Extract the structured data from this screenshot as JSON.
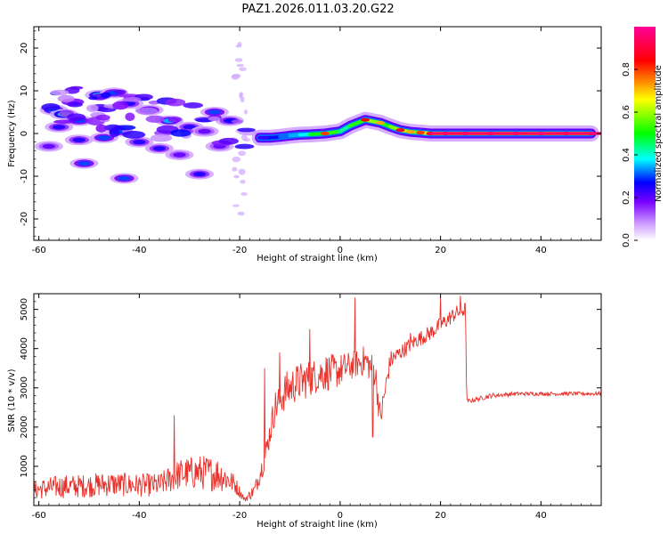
{
  "figure_title": "PAZ1.2026.011.03.20.G22",
  "chart_data": [
    {
      "type": "heatmap",
      "title": "PAZ1.2026.011.03.20.G22",
      "xlabel": "Height of straight line (km)",
      "ylabel": "Frequency (Hz)",
      "xlim": [
        -61,
        52
      ],
      "ylim": [
        -25,
        25
      ],
      "x_ticks": [
        -60,
        -40,
        -20,
        0,
        20,
        40
      ],
      "y_ticks": [
        -20,
        -10,
        0,
        10,
        20
      ],
      "colorbar": {
        "label": "Normalized spectral amplitude",
        "range": [
          0,
          1
        ],
        "ticks": [
          0.0,
          0.2,
          0.4,
          0.6,
          0.8
        ],
        "colors": [
          "#ffffff",
          "#cc99ff",
          "#7a00ff",
          "#0000ff",
          "#00ffff",
          "#00ff00",
          "#ffff00",
          "#ff0000",
          "#ff00aa"
        ]
      },
      "ridge": [
        {
          "h": -16,
          "f": -1.0,
          "a": 0.28
        },
        {
          "h": -14,
          "f": -1.0,
          "a": 0.34
        },
        {
          "h": -12,
          "f": -0.8,
          "a": 0.4
        },
        {
          "h": -10,
          "f": -0.5,
          "a": 0.44
        },
        {
          "h": -8,
          "f": -0.3,
          "a": 0.48
        },
        {
          "h": -6,
          "f": -0.2,
          "a": 0.52
        },
        {
          "h": -3,
          "f": 0.0,
          "a": 0.8
        },
        {
          "h": 0,
          "f": 0.5,
          "a": 0.6
        },
        {
          "h": 2,
          "f": 1.8,
          "a": 0.55
        },
        {
          "h": 5,
          "f": 3.2,
          "a": 0.85
        },
        {
          "h": 8,
          "f": 2.5,
          "a": 0.72
        },
        {
          "h": 10,
          "f": 1.6,
          "a": 0.66
        },
        {
          "h": 12,
          "f": 0.8,
          "a": 0.88
        },
        {
          "h": 14,
          "f": 0.4,
          "a": 0.72
        },
        {
          "h": 16,
          "f": 0.2,
          "a": 0.8
        },
        {
          "h": 18,
          "f": 0.0,
          "a": 0.9
        },
        {
          "h": 21,
          "f": 0.0,
          "a": 0.98
        },
        {
          "h": 25,
          "f": 0.0,
          "a": 0.97
        },
        {
          "h": 30,
          "f": 0.0,
          "a": 0.97
        },
        {
          "h": 35,
          "f": 0.0,
          "a": 0.97
        },
        {
          "h": 40,
          "f": 0.0,
          "a": 0.97
        },
        {
          "h": 45,
          "f": 0.0,
          "a": 0.97
        },
        {
          "h": 50,
          "f": 0.0,
          "a": 0.97
        }
      ],
      "scatter_blobs": [
        {
          "h": -57,
          "f": 5.5,
          "a": 0.35
        },
        {
          "h": -55,
          "f": 4.5,
          "a": 0.45
        },
        {
          "h": -52,
          "f": 3.0,
          "a": 0.3
        },
        {
          "h": -48,
          "f": 9.0,
          "a": 0.4
        },
        {
          "h": -45,
          "f": 9.5,
          "a": 0.3
        },
        {
          "h": -42,
          "f": 7.0,
          "a": 0.25
        },
        {
          "h": -38,
          "f": 5.5,
          "a": 0.3
        },
        {
          "h": -34,
          "f": 3.0,
          "a": 0.35
        },
        {
          "h": -30,
          "f": 1.5,
          "a": 0.25
        },
        {
          "h": -56,
          "f": 1.5,
          "a": 0.25
        },
        {
          "h": -52,
          "f": -1.5,
          "a": 0.25
        },
        {
          "h": -47,
          "f": -1.0,
          "a": 0.3
        },
        {
          "h": -44,
          "f": 0.5,
          "a": 0.3
        },
        {
          "h": -40,
          "f": -2.0,
          "a": 0.25
        },
        {
          "h": -36,
          "f": -3.5,
          "a": 0.25
        },
        {
          "h": -51,
          "f": -7.0,
          "a": 0.3
        },
        {
          "h": -43,
          "f": -10.5,
          "a": 0.3
        },
        {
          "h": -28,
          "f": -9.5,
          "a": 0.25
        },
        {
          "h": -25,
          "f": 5.0,
          "a": 0.3
        },
        {
          "h": -22,
          "f": 3.0,
          "a": 0.25
        },
        {
          "h": -27,
          "f": 0.5,
          "a": 0.2
        },
        {
          "h": -32,
          "f": -5.0,
          "a": 0.2
        },
        {
          "h": -58,
          "f": -3.0,
          "a": 0.2
        },
        {
          "h": -24,
          "f": -3.0,
          "a": 0.2
        }
      ]
    },
    {
      "type": "line",
      "xlabel": "Height of straight line (km)",
      "ylabel": "SNR (10 * v/v)",
      "xlim": [
        -61,
        52
      ],
      "ylim": [
        0,
        5400
      ],
      "x_ticks": [
        -60,
        -40,
        -20,
        0,
        20,
        40
      ],
      "y_ticks": [
        1000,
        2000,
        3000,
        4000,
        5000
      ],
      "color": "#e8322c",
      "x": [
        -61,
        -56,
        -51,
        -46,
        -41,
        -36,
        -32,
        -28,
        -24,
        -21,
        -19,
        -17,
        -15,
        -13,
        -11,
        -9,
        -7,
        -5,
        -3,
        -1,
        1,
        3,
        5,
        7,
        8,
        10,
        12,
        15,
        18,
        21,
        23,
        25,
        25.2,
        27,
        30,
        35,
        40,
        45,
        50,
        52
      ],
      "y": [
        400,
        480,
        500,
        550,
        520,
        520,
        800,
        850,
        800,
        550,
        150,
        400,
        1200,
        2500,
        2900,
        3100,
        3200,
        3300,
        3400,
        3400,
        3500,
        3600,
        3700,
        3400,
        2200,
        3700,
        3900,
        4200,
        4400,
        4700,
        4900,
        5000,
        2650,
        2700,
        2800,
        2850,
        2850,
        2850,
        2850,
        2850
      ],
      "noise": [
        250,
        300,
        300,
        320,
        300,
        300,
        400,
        450,
        450,
        250,
        60,
        200,
        300,
        450,
        500,
        500,
        500,
        450,
        500,
        450,
        400,
        350,
        400,
        400,
        350,
        250,
        200,
        200,
        200,
        200,
        200,
        200,
        60,
        60,
        60,
        50,
        50,
        50,
        50,
        50
      ],
      "spikes": [
        {
          "x": -33,
          "y": 2300
        },
        {
          "x": -15,
          "y": 3500
        },
        {
          "x": -12,
          "y": 3900
        },
        {
          "x": -6,
          "y": 4500
        },
        {
          "x": 3,
          "y": 5300
        },
        {
          "x": 6.5,
          "y": 1750
        },
        {
          "x": 14,
          "y": 4400
        },
        {
          "x": 20,
          "y": 5300
        },
        {
          "x": 24,
          "y": 5350
        }
      ]
    }
  ]
}
